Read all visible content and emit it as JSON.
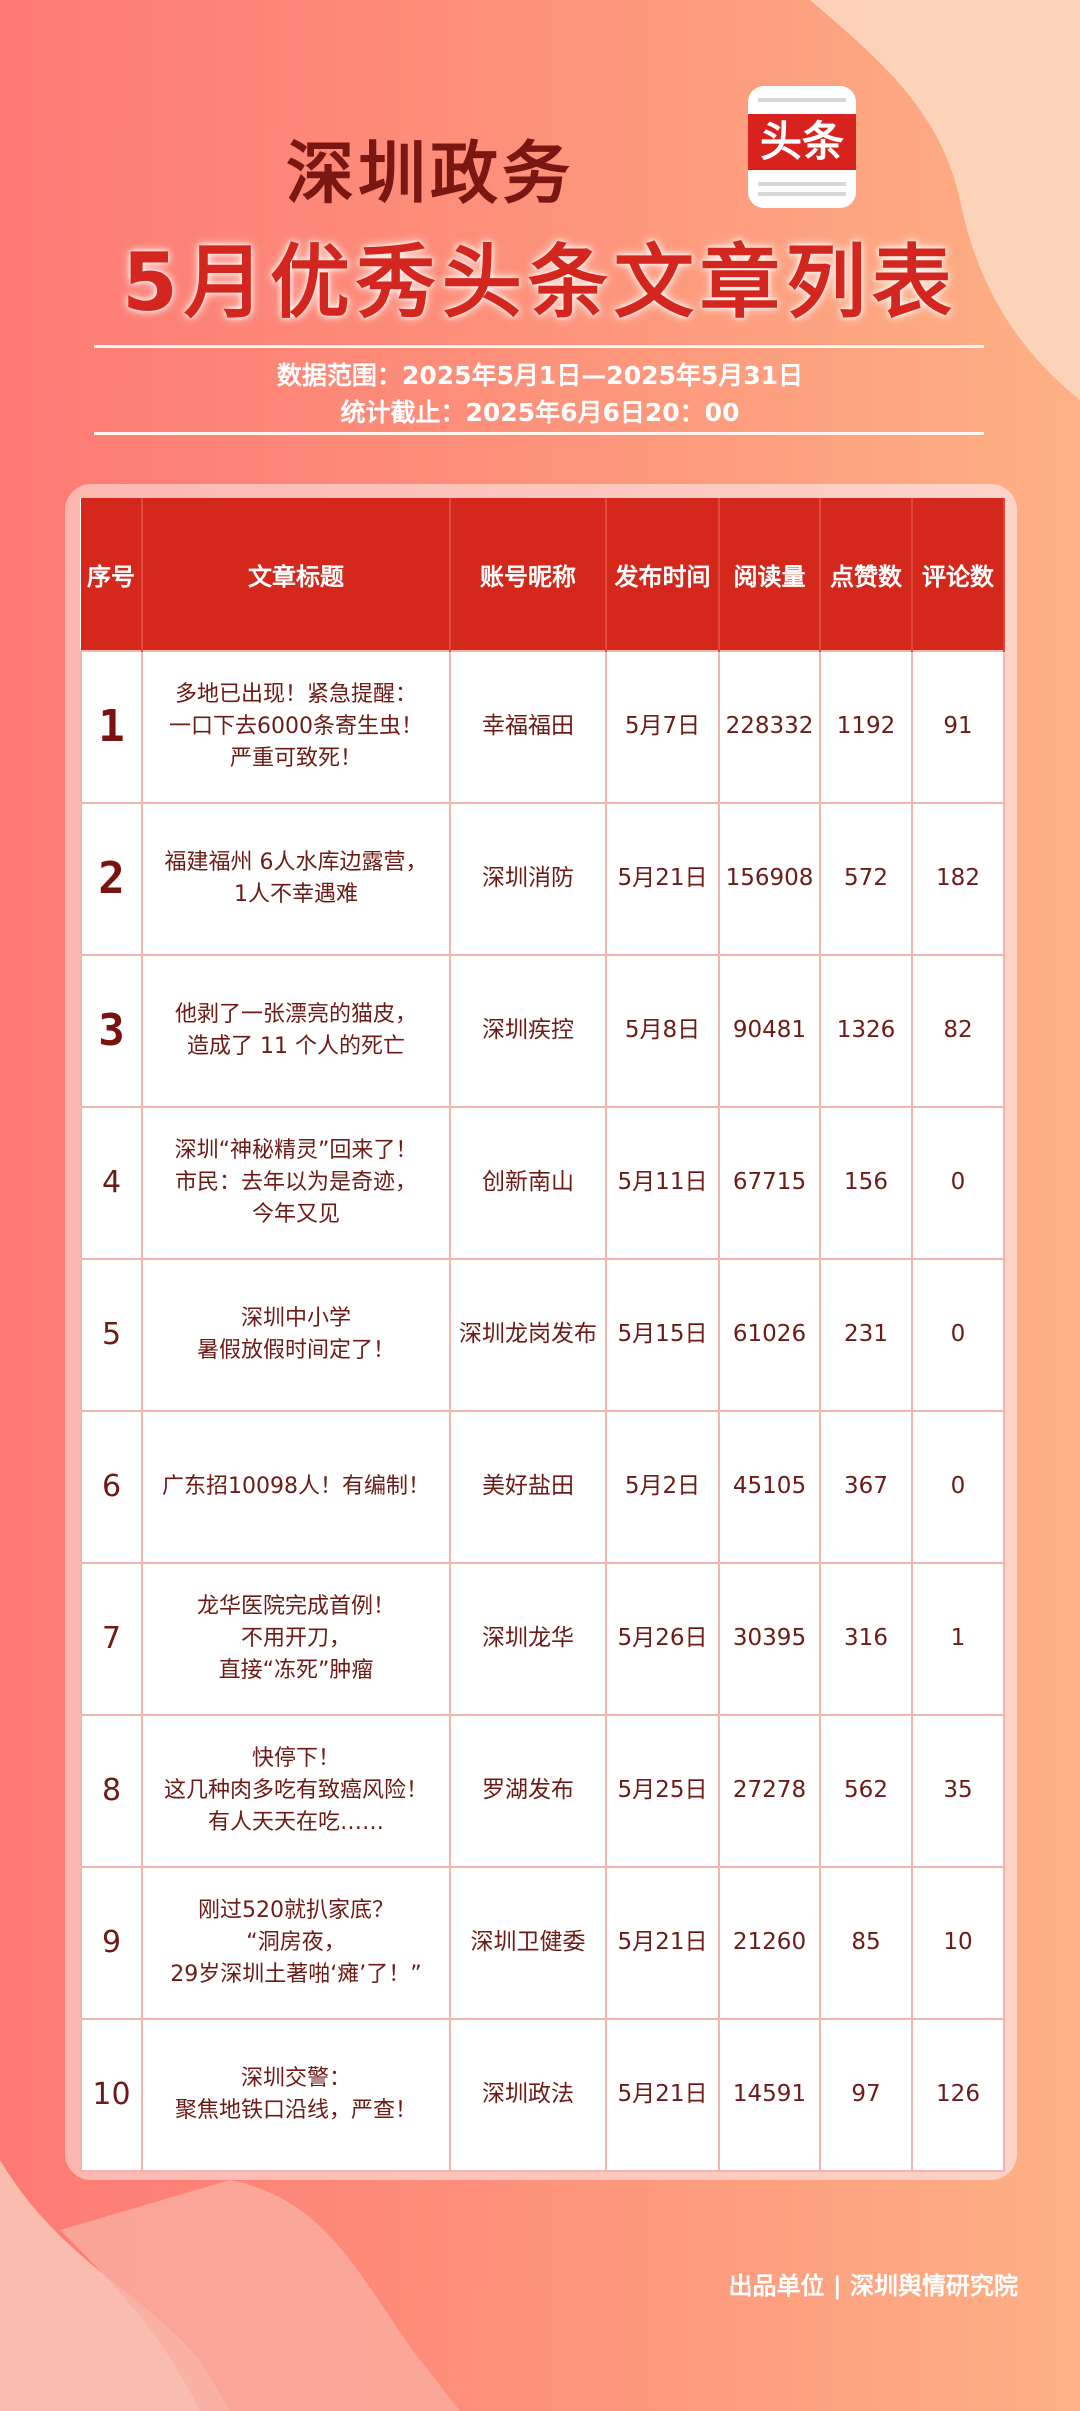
{
  "header": {
    "title_line1": "深圳政务",
    "logo_text": "头条",
    "title_line2": "5月优秀头条文章列表",
    "data_range": "数据范围：2025年5月1日—2025年5月31日",
    "cutoff": "统计截止：2025年6月6日20：00"
  },
  "colors": {
    "header_red": "#d4281d",
    "text_dark_red": "#6d1b16",
    "title_red": "#d3261e"
  },
  "table": {
    "columns": [
      "序号",
      "文章标题",
      "账号昵称",
      "发布时间",
      "阅读量",
      "点赞数",
      "评论数"
    ],
    "rows": [
      {
        "rank": "1",
        "title": "多地已出现！紧急提醒：\n一口下去6000条寄生虫！\n严重可致死！",
        "account": "幸福福田",
        "date": "5月7日",
        "reads": "228332",
        "likes": "1192",
        "comments": "91"
      },
      {
        "rank": "2",
        "title": "福建福州 6人水库边露营，\n1人不幸遇难",
        "account": "深圳消防",
        "date": "5月21日",
        "reads": "156908",
        "likes": "572",
        "comments": "182"
      },
      {
        "rank": "3",
        "title": "他剥了一张漂亮的猫皮，\n造成了 11 个人的死亡",
        "account": "深圳疾控",
        "date": "5月8日",
        "reads": "90481",
        "likes": "1326",
        "comments": "82"
      },
      {
        "rank": "4",
        "title": "深圳“神秘精灵”回来了！\n市民：去年以为是奇迹，\n今年又见",
        "account": "创新南山",
        "date": "5月11日",
        "reads": "67715",
        "likes": "156",
        "comments": "0"
      },
      {
        "rank": "5",
        "title": "深圳中小学\n暑假放假时间定了！",
        "account": "深圳龙岗发布",
        "date": "5月15日",
        "reads": "61026",
        "likes": "231",
        "comments": "0"
      },
      {
        "rank": "6",
        "title": "广东招10098人！有编制！",
        "account": "美好盐田",
        "date": "5月2日",
        "reads": "45105",
        "likes": "367",
        "comments": "0"
      },
      {
        "rank": "7",
        "title": "龙华医院完成首例！\n不用开刀，\n直接“冻死”肿瘤",
        "account": "深圳龙华",
        "date": "5月26日",
        "reads": "30395",
        "likes": "316",
        "comments": "1"
      },
      {
        "rank": "8",
        "title": "快停下！\n这几种肉多吃有致癌风险！\n有人天天在吃……",
        "account": "罗湖发布",
        "date": "5月25日",
        "reads": "27278",
        "likes": "562",
        "comments": "35"
      },
      {
        "rank": "9",
        "title": "刚过520就扒家底？\n“洞房夜，\n29岁深圳土著啪‘瘫’了！”",
        "account": "深圳卫健委",
        "date": "5月21日",
        "reads": "21260",
        "likes": "85",
        "comments": "10"
      },
      {
        "rank": "10",
        "title": "深圳交警：\n聚焦地铁口沿线，严查！",
        "account": "深圳政法",
        "date": "5月21日",
        "reads": "14591",
        "likes": "97",
        "comments": "126"
      }
    ]
  },
  "footer": {
    "producer": "出品单位 | 深圳舆情研究院"
  }
}
